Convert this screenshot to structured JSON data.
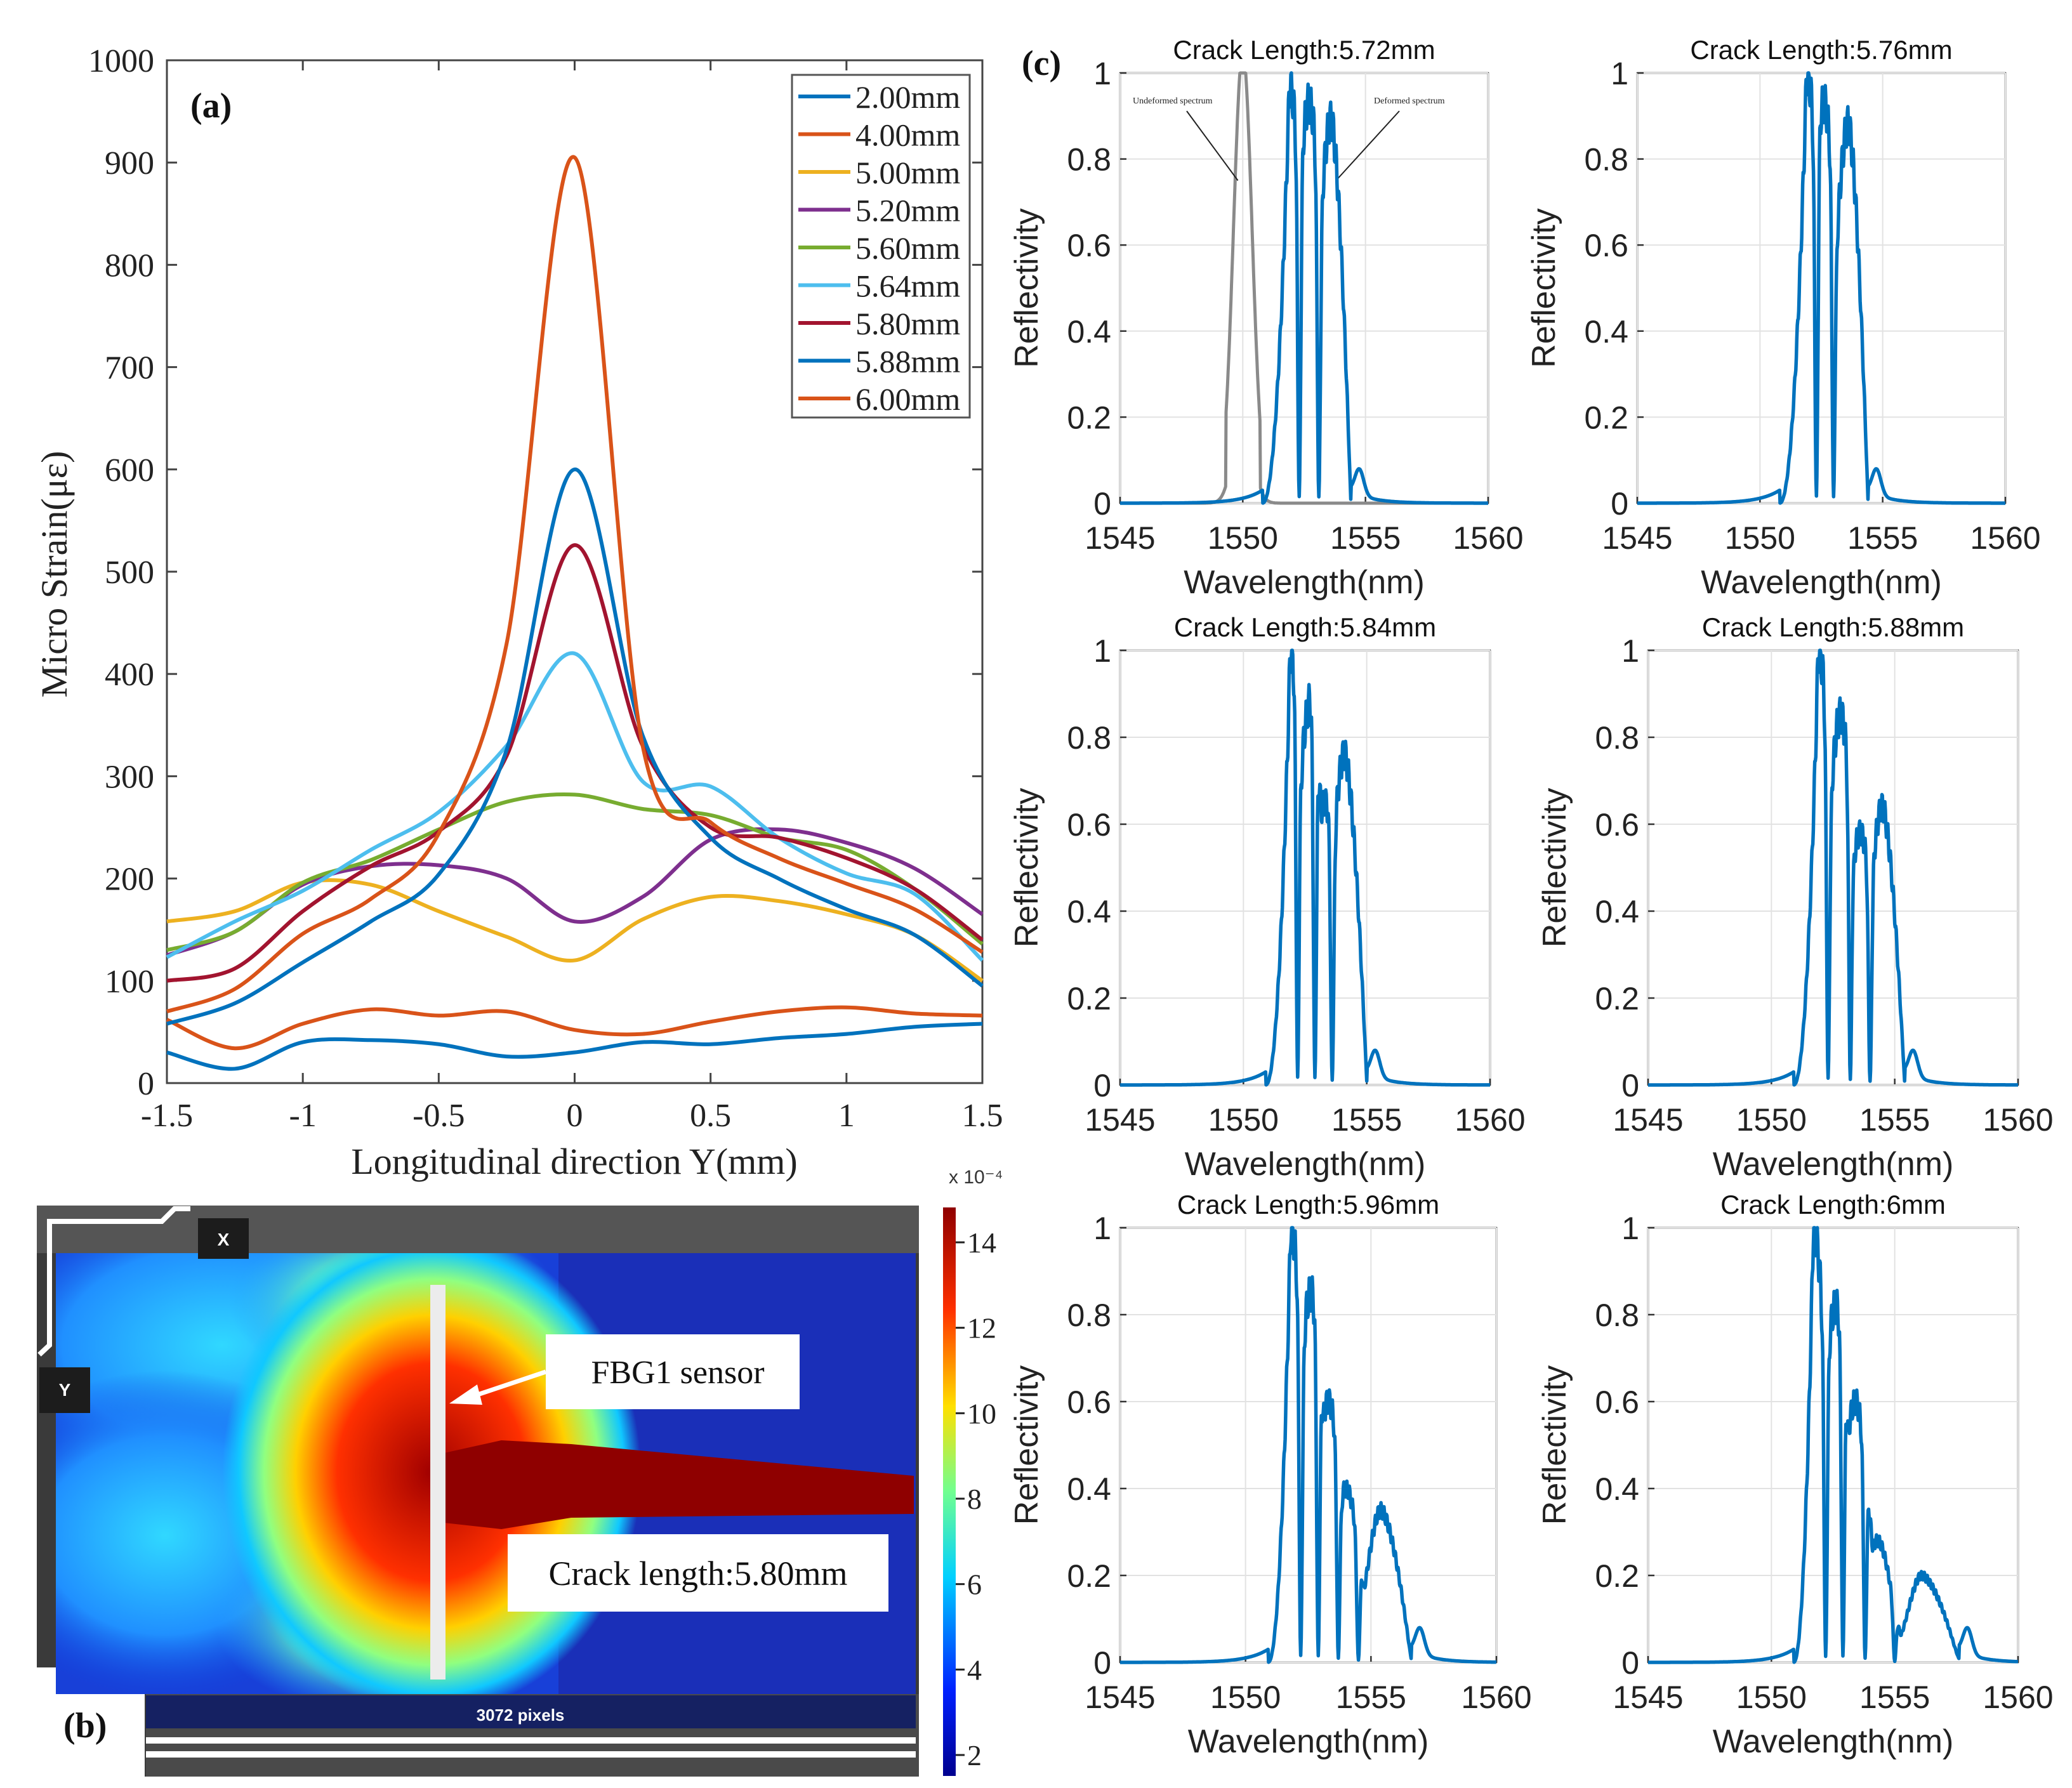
{
  "panel_a": {
    "label": "(a)",
    "chart_data": {
      "type": "line",
      "xlabel": "Longitudinal direction Y(mm)",
      "ylabel": "Micro Strain(με)",
      "xlim": [
        -1.5,
        1.5
      ],
      "ylim": [
        0,
        1000
      ],
      "xticks": [
        -1.5,
        -1,
        -0.5,
        0,
        0.5,
        1,
        1.5
      ],
      "xtick_labels": [
        "-1.5",
        "-1",
        "-0.5",
        "0",
        "0.5",
        "1",
        "1.5"
      ],
      "yticks": [
        0,
        100,
        200,
        300,
        400,
        500,
        600,
        700,
        800,
        900,
        1000
      ],
      "ytick_labels": [
        "0",
        "100",
        "200",
        "300",
        "400",
        "500",
        "600",
        "700",
        "800",
        "900",
        "1000"
      ],
      "grid": false,
      "legend_position": "top-right",
      "x": [
        -1.5,
        -1.25,
        -1.0,
        -0.75,
        -0.5,
        -0.25,
        0.0,
        0.25,
        0.5,
        0.75,
        1.0,
        1.25,
        1.5
      ],
      "series": [
        {
          "name": "2.00mm",
          "color": "#0072BD",
          "values": [
            30,
            14,
            40,
            42,
            38,
            26,
            30,
            40,
            38,
            44,
            48,
            55,
            58
          ]
        },
        {
          "name": "4.00mm",
          "color": "#D95319",
          "values": [
            62,
            34,
            58,
            72,
            66,
            70,
            52,
            48,
            60,
            70,
            74,
            68,
            66
          ]
        },
        {
          "name": "5.00mm",
          "color": "#EDB120",
          "values": [
            158,
            168,
            196,
            194,
            168,
            143,
            120,
            160,
            182,
            178,
            165,
            145,
            100
          ]
        },
        {
          "name": "5.20mm",
          "color": "#7E2F8E",
          "values": [
            125,
            148,
            194,
            212,
            213,
            200,
            158,
            182,
            238,
            248,
            235,
            210,
            165
          ]
        },
        {
          "name": "5.60mm",
          "color": "#77AC30",
          "values": [
            130,
            148,
            196,
            218,
            248,
            275,
            282,
            268,
            262,
            240,
            228,
            190,
            136
          ]
        },
        {
          "name": "5.64mm",
          "color": "#4DBEEE",
          "values": [
            123,
            158,
            188,
            228,
            265,
            330,
            420,
            295,
            290,
            240,
            205,
            185,
            120
          ]
        },
        {
          "name": "5.80mm",
          "color": "#A2142F",
          "values": [
            100,
            112,
            168,
            212,
            246,
            320,
            526,
            330,
            250,
            240,
            220,
            190,
            140
          ]
        },
        {
          "name": "5.88mm",
          "color": "#0072BD",
          "values": [
            58,
            78,
            118,
            158,
            204,
            326,
            600,
            340,
            240,
            200,
            170,
            145,
            95
          ]
        },
        {
          "name": "6.00mm",
          "color": "#D95319",
          "values": [
            70,
            92,
            146,
            180,
            244,
            430,
            905,
            330,
            255,
            220,
            195,
            170,
            128
          ]
        }
      ]
    }
  },
  "panel_b": {
    "label": "(b)",
    "scale_exponent": "x 10⁻⁴",
    "colorbar_ticks": [
      "14",
      "12",
      "10",
      "8",
      "6",
      "4",
      "2"
    ],
    "colorbar_values": [
      14,
      12,
      10,
      8,
      6,
      4,
      2
    ],
    "sensor_label": "FBG1 sensor",
    "crack_label": "Crack length:5.80mm",
    "axis_x_label": "X",
    "axis_y_label": "Y",
    "scale_bar_text": "3072 pixels"
  },
  "panel_c": {
    "label": "(c)",
    "xlabel": "Wavelength(nm)",
    "ylabel": "Reflectivity",
    "xlim": [
      1545,
      1560
    ],
    "ylim": [
      0,
      1
    ],
    "xticks": [
      "1545",
      "1550",
      "1555",
      "1560"
    ],
    "yticks": [
      "0",
      "0.2",
      "0.4",
      "0.6",
      "0.8",
      "1"
    ],
    "annotation_undeformed": "Undeformed spectrum",
    "annotation_deformed": "Deformed spectrum",
    "chart_data": [
      {
        "type": "line",
        "title": "Crack Length:5.72mm",
        "peaks": [
          [
            1551.9,
            0.97
          ],
          [
            1552.7,
            0.93
          ],
          [
            1553.6,
            0.89
          ]
        ],
        "notches": [
          1552.3,
          1553.1
        ],
        "edges": [
          1550.8,
          1554.4
        ],
        "undeformed_peak": 1550.0
      },
      {
        "type": "line",
        "title": "Crack Length:5.76mm",
        "peaks": [
          [
            1551.9,
            1.0
          ],
          [
            1552.6,
            0.93
          ],
          [
            1553.6,
            0.88
          ]
        ],
        "notches": [
          1552.3,
          1553.0
        ],
        "edges": [
          1550.8,
          1554.4
        ]
      },
      {
        "type": "line",
        "title": "Crack Length:5.84mm",
        "peaks": [
          [
            1551.9,
            1.0
          ],
          [
            1552.7,
            0.88
          ],
          [
            1553.3,
            0.65
          ],
          [
            1554.1,
            0.76
          ]
        ],
        "notches": [
          1552.2,
          1552.9,
          1553.6
        ],
        "edges": [
          1550.9,
          1555.0
        ]
      },
      {
        "type": "line",
        "title": "Crack Length:5.88mm",
        "peaks": [
          [
            1551.9,
            1.0
          ],
          [
            1552.8,
            0.85
          ],
          [
            1553.6,
            0.58
          ],
          [
            1554.5,
            0.64
          ]
        ],
        "notches": [
          1552.3,
          1553.2,
          1554.0
        ],
        "edges": [
          1550.9,
          1555.4
        ]
      },
      {
        "type": "line",
        "title": "Crack Length:5.96mm",
        "peaks": [
          [
            1551.8,
            1.0
          ],
          [
            1552.6,
            0.85
          ],
          [
            1553.3,
            0.6
          ],
          [
            1554.0,
            0.4
          ],
          [
            1555.4,
            0.35
          ]
        ],
        "notches": [
          1552.2,
          1552.9,
          1553.7,
          1554.5
        ],
        "edges": [
          1550.9,
          1556.6
        ]
      },
      {
        "type": "line",
        "title": "Crack Length:6mm",
        "peaks": [
          [
            1551.7,
            1.0
          ],
          [
            1552.6,
            0.82
          ],
          [
            1553.4,
            0.6
          ],
          [
            1554.3,
            0.28
          ],
          [
            1556.1,
            0.2
          ]
        ],
        "notches": [
          1552.2,
          1552.9,
          1553.8,
          1555.0
        ],
        "edges": [
          1550.9,
          1557.6
        ]
      }
    ]
  }
}
